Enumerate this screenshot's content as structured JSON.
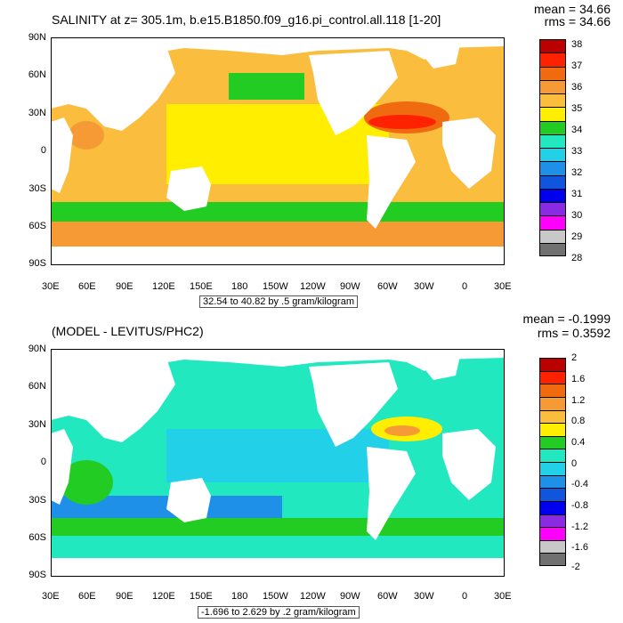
{
  "chart_data": [
    {
      "type": "heatmap",
      "title": "SALINITY at z= 305.1m, b.e15.B1850.f09_g16.pi_control.all.118 [1-20]",
      "stats": {
        "mean": "mean = 34.66",
        "rms": "rms = 34.66"
      },
      "lat_ticks": [
        "90N",
        "60N",
        "30N",
        "0",
        "30S",
        "60S",
        "90S"
      ],
      "lon_ticks": [
        "30E",
        "60E",
        "90E",
        "120E",
        "150E",
        "180",
        "150W",
        "120W",
        "90W",
        "60W",
        "30W",
        "0",
        "30E"
      ],
      "colorbar": {
        "labels": [
          "38",
          "37",
          "36",
          "35",
          "34",
          "33",
          "32",
          "31",
          "30",
          "29",
          "28"
        ],
        "colors": [
          "#bb0000",
          "#ff2200",
          "#f06a10",
          "#f59a35",
          "#fbbd3d",
          "#ffee00",
          "#22cc22",
          "#22e8c0",
          "#22d0e8",
          "#1e90e8",
          "#1155dd",
          "#0000ee",
          "#8a2be2",
          "#ff00ff",
          "#c8c8c8",
          "#707070"
        ]
      },
      "range_note": "32.54 to 40.82 by .5 gram/kilogram"
    },
    {
      "type": "heatmap",
      "title": "(MODEL - LEVITUS/PHC2)",
      "stats": {
        "mean": "mean = -0.1999",
        "rms": "rms = 0.3592"
      },
      "lat_ticks": [
        "90N",
        "60N",
        "30N",
        "0",
        "30S",
        "60S",
        "90S"
      ],
      "lon_ticks": [
        "30E",
        "60E",
        "90E",
        "120E",
        "150E",
        "180",
        "150W",
        "120W",
        "90W",
        "60W",
        "30W",
        "0",
        "30E"
      ],
      "colorbar": {
        "labels": [
          "2",
          "1.6",
          "1.2",
          "0.8",
          "0.4",
          "0",
          "-0.4",
          "-0.8",
          "-1.2",
          "-1.6",
          "-2"
        ],
        "colors": [
          "#bb0000",
          "#ff2200",
          "#f06a10",
          "#f59a35",
          "#fbbd3d",
          "#ffee00",
          "#22cc22",
          "#22e8c0",
          "#22d0e8",
          "#1e90e8",
          "#1155dd",
          "#0000ee",
          "#8a2be2",
          "#ff00ff",
          "#c8c8c8",
          "#707070"
        ]
      },
      "range_note": "-1.696 to 2.629 by .2 gram/kilogram"
    }
  ]
}
